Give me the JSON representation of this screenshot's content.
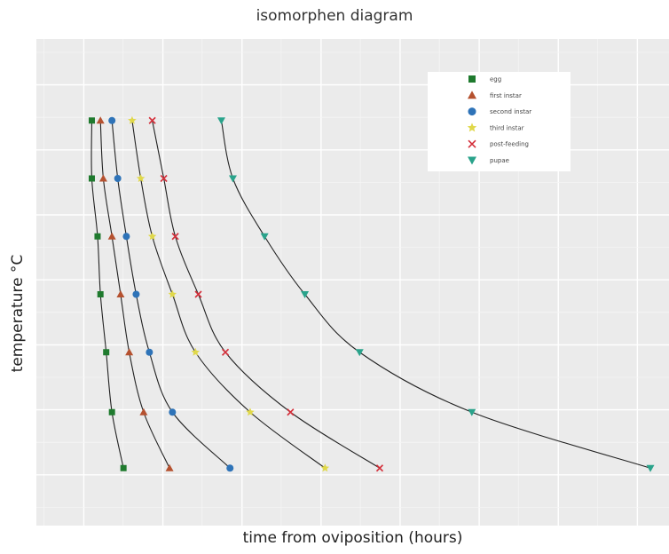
{
  "chart_data": {
    "type": "line",
    "title": "isomorphen diagram",
    "xlabel": "time from oviposition (hours)",
    "ylabel": "temperature °C",
    "tick_labels_shown": false,
    "grid": true,
    "legend_position": "top-right",
    "xlim": [
      0,
      1
    ],
    "ylim": [
      0,
      1
    ],
    "y_levels": [
      0.905,
      0.76,
      0.615,
      0.47,
      0.325,
      0.175,
      0.035
    ],
    "series": [
      {
        "name": "egg",
        "marker": "square",
        "color": "#1f7a2e",
        "x": [
          0.03,
          0.03,
          0.04,
          0.045,
          0.055,
          0.065,
          0.085
        ]
      },
      {
        "name": "first instar",
        "marker": "triangle-up",
        "color": "#b5512f",
        "x": [
          0.045,
          0.05,
          0.065,
          0.08,
          0.095,
          0.12,
          0.165
        ]
      },
      {
        "name": "second instar",
        "marker": "circle",
        "color": "#2e73b8",
        "x": [
          0.065,
          0.075,
          0.09,
          0.107,
          0.13,
          0.17,
          0.27
        ]
      },
      {
        "name": "third instar",
        "marker": "star",
        "color": "#e0d84a",
        "x": [
          0.1,
          0.115,
          0.135,
          0.17,
          0.21,
          0.305,
          0.435
        ]
      },
      {
        "name": "post-feeding",
        "marker": "x",
        "color": "#d42f3a",
        "x": [
          0.135,
          0.155,
          0.175,
          0.215,
          0.262,
          0.375,
          0.53
        ]
      },
      {
        "name": "pupae",
        "marker": "triangle-down",
        "color": "#2aa38b",
        "x": [
          0.255,
          0.275,
          0.33,
          0.4,
          0.495,
          0.69,
          1.0
        ]
      }
    ]
  }
}
